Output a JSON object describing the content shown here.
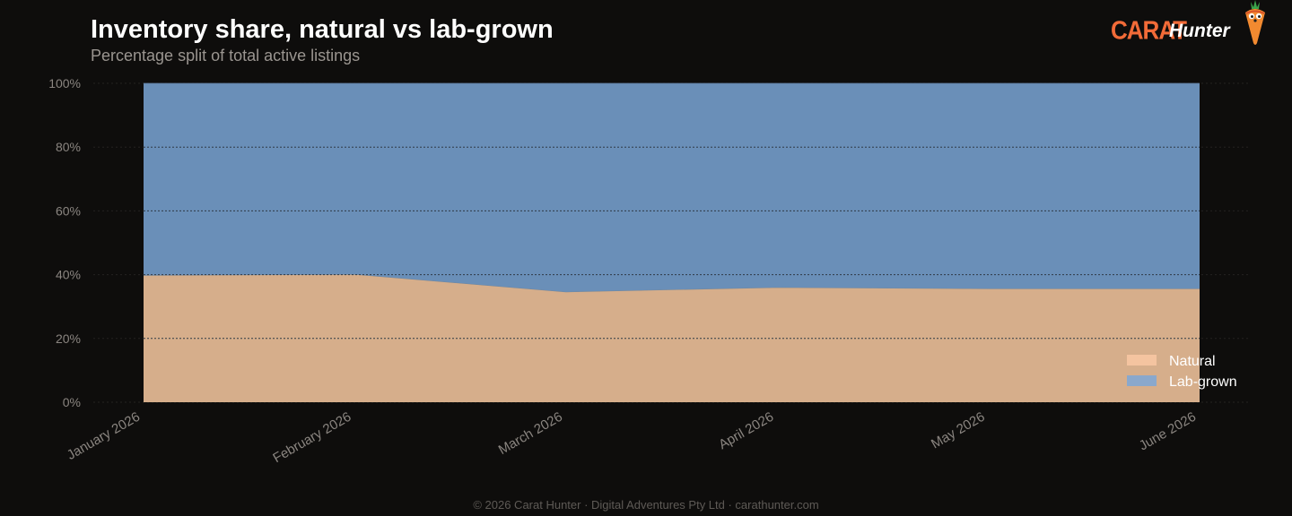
{
  "header": {
    "title": "Inventory share, natural vs lab-grown",
    "subtitle": "Percentage split of total active listings"
  },
  "logo": {
    "brand_primary": "CARAT",
    "brand_secondary": "Hunter",
    "mascot_icon": "carrot-mascot-icon",
    "primary_color": "#f26b38"
  },
  "footer": {
    "text": "© 2026 Carat Hunter · Digital Adventures Pty Ltd · carathunter.com"
  },
  "chart_data": {
    "type": "area",
    "stacked": true,
    "normalized": true,
    "categories": [
      "January 2026",
      "February 2026",
      "March 2026",
      "April 2026",
      "May 2026",
      "June 2026"
    ],
    "series": [
      {
        "name": "Natural",
        "values": [
          39.8,
          40.1,
          34.6,
          36.0,
          35.6,
          35.6
        ],
        "color": "#d6ae8b",
        "legend_color": "#f4c4a0"
      },
      {
        "name": "Lab-grown",
        "values": [
          60.2,
          59.9,
          65.4,
          64.0,
          64.4,
          64.4
        ],
        "color": "#6a8fb8",
        "legend_color": "#8aa8cc"
      }
    ],
    "y_ticks": [
      "0%",
      "20%",
      "40%",
      "60%",
      "80%",
      "100%"
    ],
    "ylim": [
      0,
      100
    ],
    "grid": true,
    "legend_position": "bottom-right",
    "title": "Inventory share, natural vs lab-grown",
    "xlabel": "",
    "ylabel": ""
  }
}
